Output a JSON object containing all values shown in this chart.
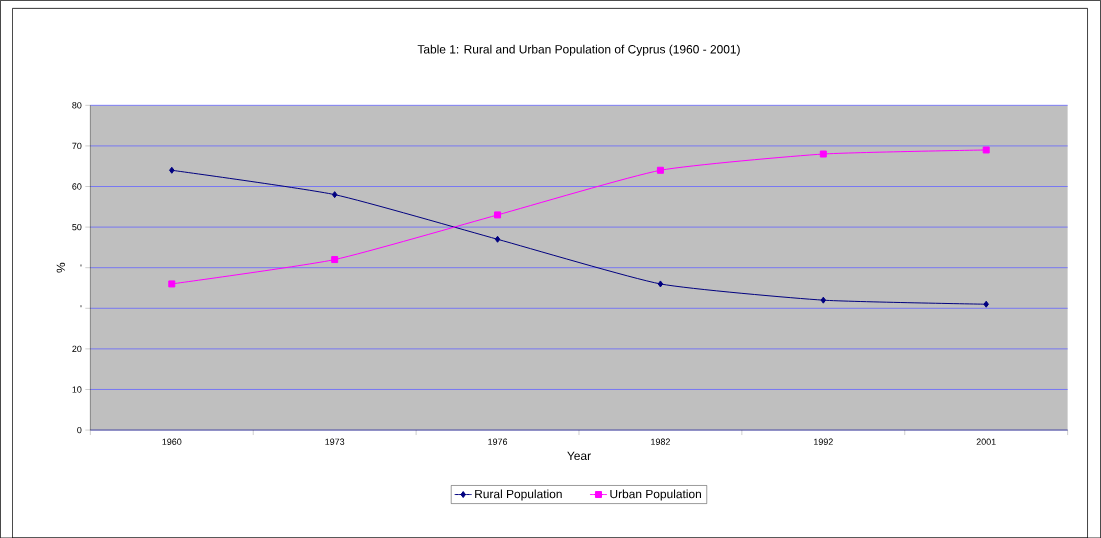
{
  "chart_data": {
    "type": "line",
    "title": "Table 1: Rural and Urban Population of Cyprus (1960 - 2001)",
    "xlabel": "Year",
    "ylabel": "%",
    "categories": [
      "1960",
      "1973",
      "1976",
      "1982",
      "1992",
      "2001"
    ],
    "series": [
      {
        "name": "Rural Population",
        "color": "#000080",
        "marker": "diamond",
        "values": [
          64,
          58,
          47,
          36,
          32,
          31
        ]
      },
      {
        "name": "Urban Population",
        "color": "#ff00ff",
        "marker": "square",
        "values": [
          36,
          42,
          53,
          64,
          68,
          69
        ]
      }
    ],
    "ylim": [
      0,
      80
    ],
    "yticks": [
      0,
      10,
      20,
      {
        "value": 30,
        "label": "'"
      },
      {
        "value": 40,
        "label": "'"
      },
      50,
      60,
      70,
      80
    ],
    "grid": "y",
    "legend": "bottom"
  }
}
